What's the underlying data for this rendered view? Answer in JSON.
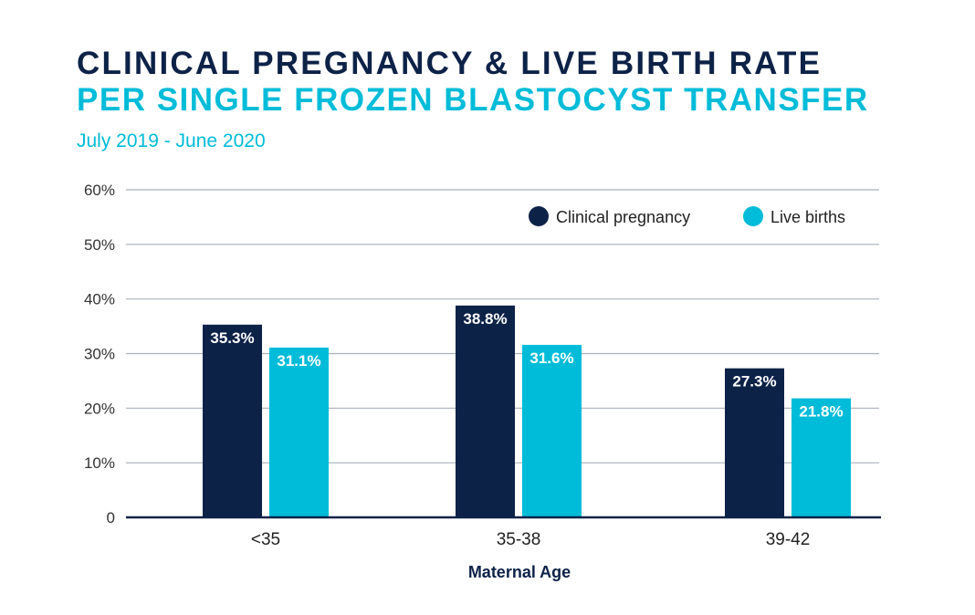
{
  "title": "CLINICAL PREGNANCY & LIVE BIRTH RATE",
  "subtitle_line": "PER SINGLE FROZEN BLASTOCYST TRANSFER",
  "date_range": "July 2019 - June 2020",
  "colors": {
    "title": "#0d2247",
    "accent": "#00bcd8",
    "grid": "#a9b1bc",
    "axis": "#0d2247"
  },
  "chart_data": {
    "type": "bar",
    "xlabel": "Maternal Age",
    "ylabel": "",
    "ylim": [
      0,
      60
    ],
    "yticks": [
      0,
      10,
      20,
      30,
      40,
      50,
      60
    ],
    "ytick_labels": [
      "0",
      "10%",
      "20%",
      "30%",
      "40%",
      "50%",
      "60%"
    ],
    "grid": true,
    "legend_position": "top-right",
    "categories": [
      "<35",
      "35-38",
      "39-42"
    ],
    "series": [
      {
        "name": "Clinical pregnancy",
        "color": "#0d2247",
        "values": [
          35.3,
          38.8,
          27.3
        ],
        "labels": [
          "35.3%",
          "38.8%",
          "27.3%"
        ]
      },
      {
        "name": "Live births",
        "color": "#00bcd8",
        "values": [
          31.1,
          31.6,
          21.8
        ],
        "labels": [
          "31.1%",
          "31.6%",
          "21.8%"
        ]
      }
    ]
  }
}
